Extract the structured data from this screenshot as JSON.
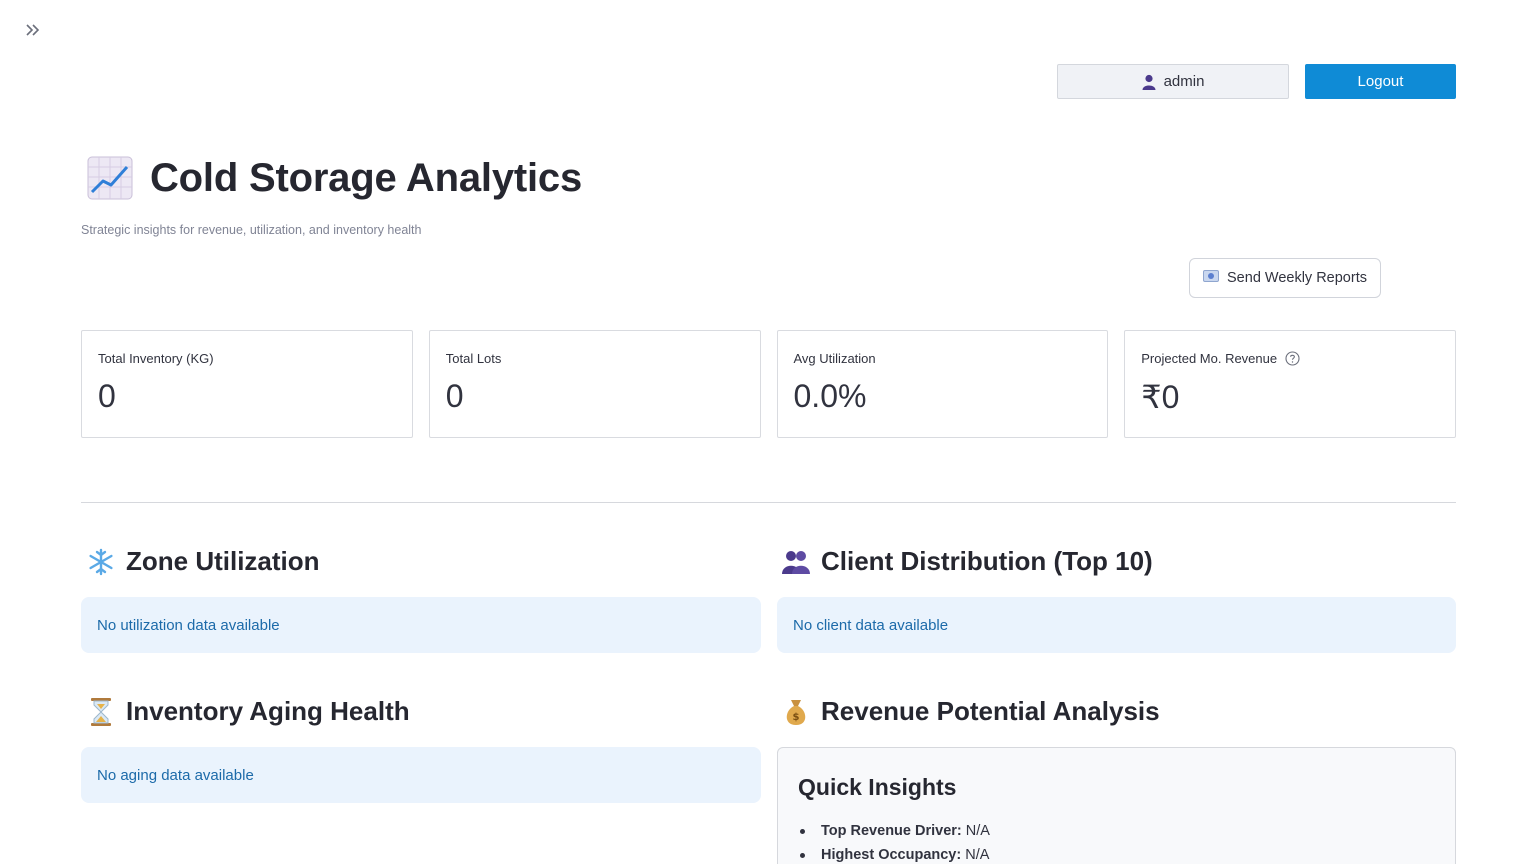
{
  "header": {
    "username": "admin",
    "logout_label": "Logout"
  },
  "page": {
    "title": "Cold Storage Analytics",
    "subtitle": "Strategic insights for revenue, utilization, and inventory health",
    "send_reports_label": "Send Weekly Reports"
  },
  "metrics": [
    {
      "label": "Total Inventory (KG)",
      "value": "0"
    },
    {
      "label": "Total Lots",
      "value": "0"
    },
    {
      "label": "Avg Utilization",
      "value": "0.0%"
    },
    {
      "label": "Projected Mo. Revenue",
      "value": "₹0"
    }
  ],
  "sections": {
    "zone": {
      "title": "Zone Utilization",
      "message": "No utilization data available"
    },
    "client": {
      "title": "Client Distribution (Top 10)",
      "message": "No client data available"
    },
    "aging": {
      "title": "Inventory Aging Health",
      "message": "No aging data available"
    },
    "revenue": {
      "title": "Revenue Potential Analysis"
    }
  },
  "insights": {
    "title": "Quick Insights",
    "items": [
      {
        "key": "Top Revenue Driver:",
        "value": "N/A"
      },
      {
        "key": "Highest Occupancy:",
        "value": "N/A"
      }
    ]
  },
  "colors": {
    "primary": "#0f8bd6",
    "info_bg": "#eaf3fd",
    "info_text": "#1c6aa9"
  }
}
